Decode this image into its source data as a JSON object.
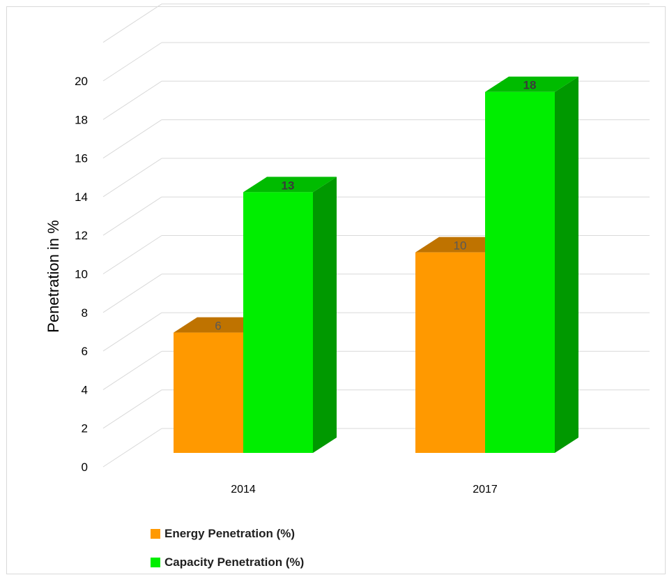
{
  "chart_data": {
    "type": "bar",
    "style": "3d-clustered-column",
    "categories": [
      "2014",
      "2017"
    ],
    "series": [
      {
        "name": "Energy Penetration (%)",
        "values": [
          6,
          10
        ],
        "color": "#ff9900",
        "top_color": "#bf7300",
        "side_color": "#bf7300",
        "label_bold": false,
        "data_labels": [
          "6",
          "10"
        ]
      },
      {
        "name": "Capacity Penetration (%)",
        "values": [
          13,
          18
        ],
        "color": "#00ee00",
        "top_color": "#00bb00",
        "side_color": "#009900",
        "label_bold": true,
        "data_labels": [
          "13",
          "18"
        ]
      }
    ],
    "title": "",
    "xlabel": "",
    "ylabel": "Penetration in %",
    "ylim": [
      0,
      20
    ],
    "yticks": [
      "0",
      "2",
      "4",
      "6",
      "8",
      "10",
      "12",
      "14",
      "16",
      "18",
      "20"
    ],
    "grid": true,
    "legend_position": "bottom-left"
  }
}
